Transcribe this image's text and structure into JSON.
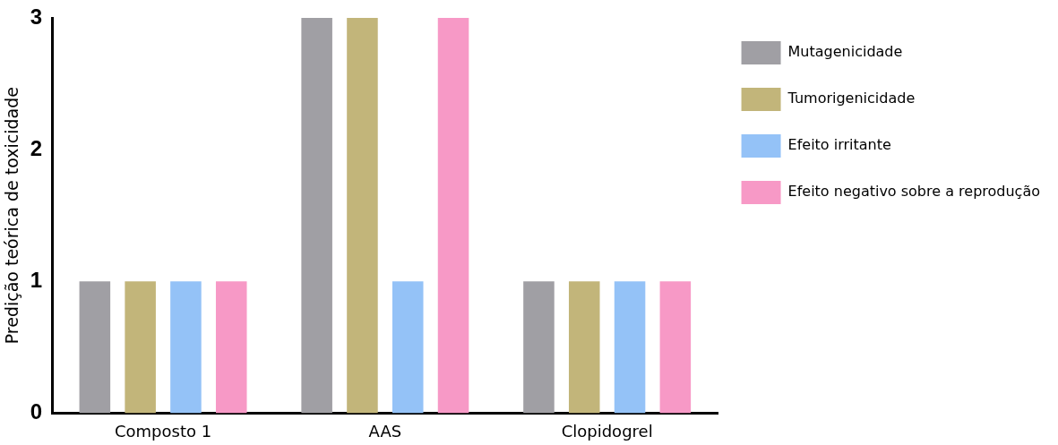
{
  "chart_data": {
    "type": "bar",
    "ylabel": "Predição teórica de toxicidade",
    "categories": [
      "Composto 1",
      "AAS",
      "Clopidogrel"
    ],
    "series": [
      {
        "name": "Mutagenicidade",
        "color": "#a09fa4",
        "values": [
          1,
          3,
          1
        ]
      },
      {
        "name": "Tumorigenicidade",
        "color": "#c2b57a",
        "values": [
          1,
          3,
          1
        ]
      },
      {
        "name": "Efeito irritante",
        "color": "#94c2f7",
        "values": [
          1,
          1,
          1
        ]
      },
      {
        "name": "Efeito negativo sobre a reprodução",
        "color": "#f799c6",
        "values": [
          1,
          3,
          1
        ]
      }
    ],
    "ylim": [
      0,
      3
    ],
    "yticks": [
      0,
      1,
      2,
      3
    ],
    "grid": false,
    "legend": "top right"
  }
}
